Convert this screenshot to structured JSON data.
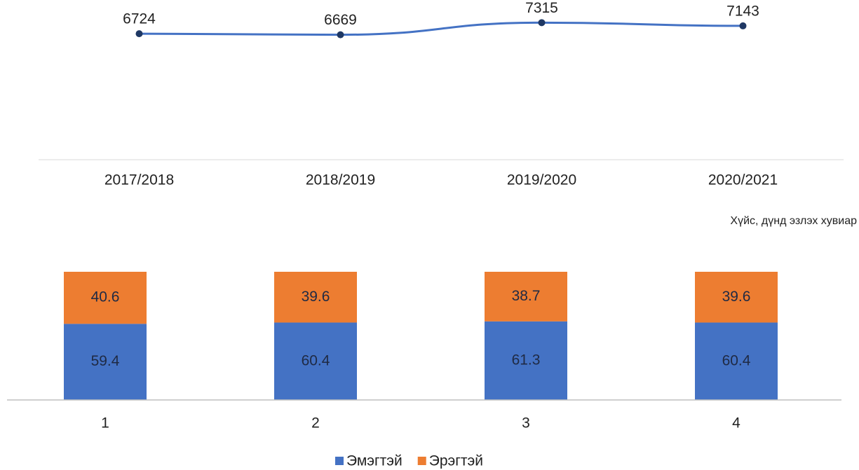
{
  "chart_data": [
    {
      "type": "line",
      "categories": [
        "2017/2018",
        "2018/2019",
        "2019/2020",
        "2020/2021"
      ],
      "values": [
        6724,
        6669,
        7315,
        7143
      ],
      "color": "#4472c4",
      "marker_color": "#1f3864",
      "ylim": [
        0,
        8000
      ]
    },
    {
      "type": "stacked_bar",
      "subtitle": "Хүйс, дүнд эзлэх хувиар",
      "categories": [
        "1",
        "2",
        "3",
        "4"
      ],
      "series": [
        {
          "name": "Эмэгтэй",
          "color": "#4472c4",
          "values": [
            59.4,
            60.4,
            61.3,
            60.4
          ]
        },
        {
          "name": "Эрэгтэй",
          "color": "#ed7d31",
          "values": [
            40.6,
            39.6,
            38.7,
            39.6
          ]
        }
      ],
      "ylim": [
        0,
        100
      ],
      "legend": "bottom"
    }
  ]
}
